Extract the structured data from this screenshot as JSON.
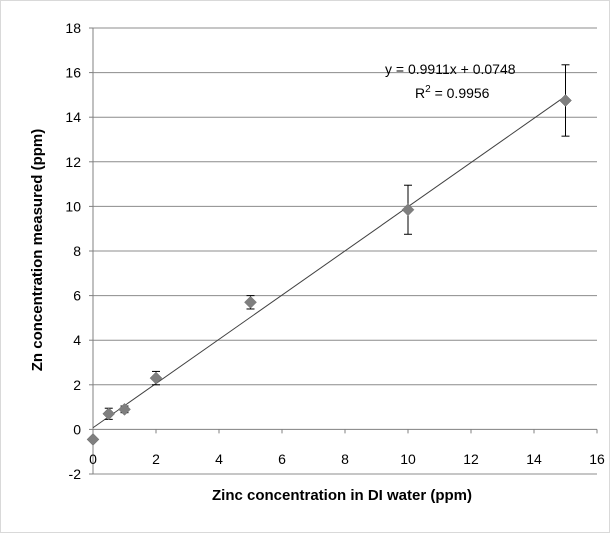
{
  "chart_data": {
    "type": "scatter",
    "xlabel": "Zinc concentration in DI water (ppm)",
    "ylabel": "Zn concentration measured (ppm)",
    "xlim": [
      0,
      16
    ],
    "ylim": [
      -2,
      18
    ],
    "x_ticks": [
      0,
      2,
      4,
      6,
      8,
      10,
      12,
      14,
      16
    ],
    "y_ticks": [
      -2,
      0,
      2,
      4,
      6,
      8,
      10,
      12,
      14,
      16,
      18
    ],
    "grid": "horizontal",
    "points": [
      {
        "x": 0,
        "y": -0.45,
        "err": 0.0
      },
      {
        "x": 0.5,
        "y": 0.7,
        "err": 0.25
      },
      {
        "x": 1,
        "y": 0.9,
        "err": 0.15
      },
      {
        "x": 2,
        "y": 2.3,
        "err": 0.3
      },
      {
        "x": 5,
        "y": 5.7,
        "err": 0.3
      },
      {
        "x": 10,
        "y": 9.85,
        "err": 1.1
      },
      {
        "x": 15,
        "y": 14.75,
        "err": 1.6
      }
    ],
    "trendline": {
      "slope": 0.9911,
      "intercept": 0.0748,
      "x_range": [
        0,
        15
      ]
    },
    "equation_text": "y = 0.9911x + 0.0748",
    "r2_prefix": "R",
    "r2_sup": "2",
    "r2_suffix": " = 0.9956",
    "colors": {
      "marker": "#7f7f7f",
      "line": "#404040",
      "grid": "#8c8c8c",
      "axis": "#808080"
    }
  }
}
